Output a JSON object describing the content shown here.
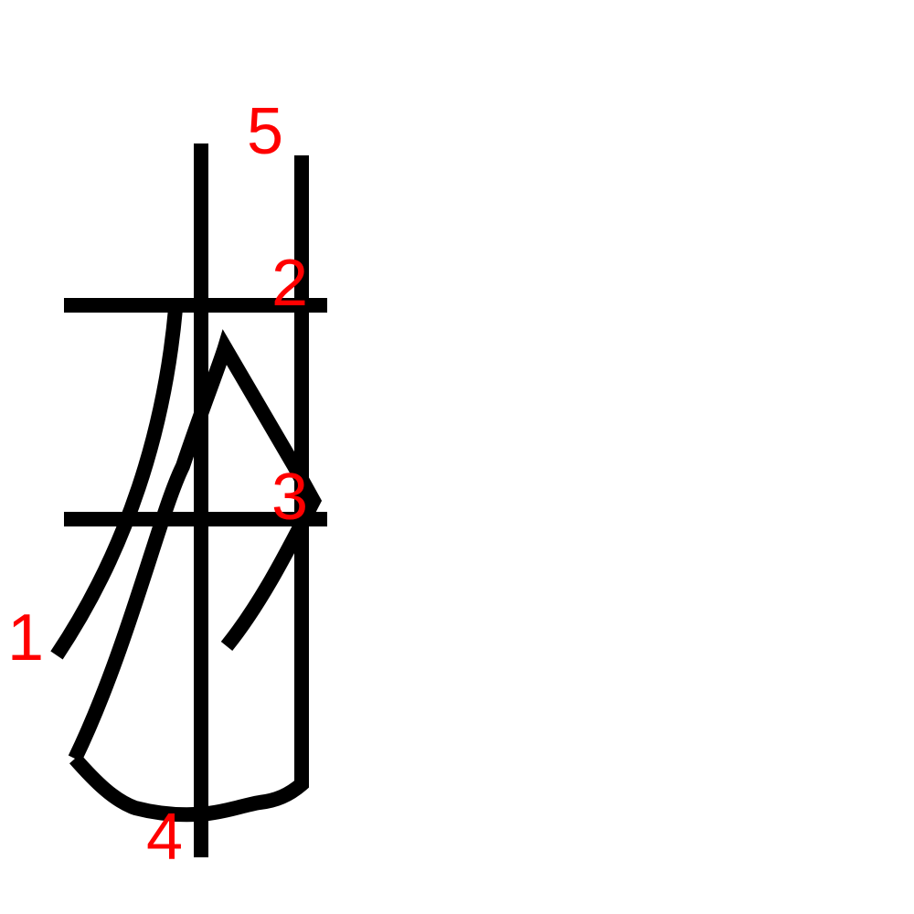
{
  "colors": {
    "stroke": "#000000",
    "label": "#ff0000",
    "background": "#ffffff"
  },
  "stroke_labels": [
    "1",
    "2",
    "3",
    "4",
    "5"
  ]
}
